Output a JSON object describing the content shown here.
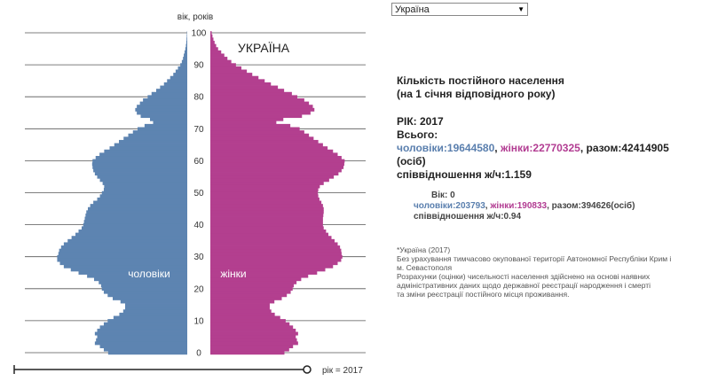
{
  "country_select": {
    "value": "Україна",
    "arrow": "▼"
  },
  "chart_data": {
    "type": "bar",
    "orientation": "population-pyramid",
    "title": "УКРАЇНА",
    "ylabel": "вік, років",
    "y_ticks": [
      "0",
      "10",
      "20",
      "30",
      "40",
      "50",
      "60",
      "70",
      "80",
      "90",
      "100"
    ],
    "xlim_max": 400000,
    "ages": [
      0,
      1,
      2,
      3,
      4,
      5,
      6,
      7,
      8,
      9,
      10,
      11,
      12,
      13,
      14,
      15,
      16,
      17,
      18,
      19,
      20,
      21,
      22,
      23,
      24,
      25,
      26,
      27,
      28,
      29,
      30,
      31,
      32,
      33,
      34,
      35,
      36,
      37,
      38,
      39,
      40,
      41,
      42,
      43,
      44,
      45,
      46,
      47,
      48,
      49,
      50,
      51,
      52,
      53,
      54,
      55,
      56,
      57,
      58,
      59,
      60,
      61,
      62,
      63,
      64,
      65,
      66,
      67,
      68,
      69,
      70,
      71,
      72,
      73,
      74,
      75,
      76,
      77,
      78,
      79,
      80,
      81,
      82,
      83,
      84,
      85,
      86,
      87,
      88,
      89,
      90,
      91,
      92,
      93,
      94,
      95,
      96,
      97,
      98,
      99,
      100
    ],
    "series": [
      {
        "name": "чоловіки",
        "color": "#5d84b1",
        "values": [
          203793,
          215000,
          225000,
          238000,
          235000,
          232000,
          238000,
          232000,
          225000,
          215000,
          205000,
          190000,
          175000,
          165000,
          160000,
          160000,
          172000,
          192000,
          205000,
          215000,
          220000,
          222000,
          228000,
          240000,
          258000,
          280000,
          300000,
          318000,
          328000,
          335000,
          335000,
          332000,
          330000,
          325000,
          318000,
          308000,
          298000,
          288000,
          280000,
          272000,
          268000,
          266000,
          264000,
          262000,
          260000,
          256000,
          250000,
          242000,
          232000,
          225000,
          220000,
          215000,
          214000,
          218000,
          225000,
          232000,
          238000,
          242000,
          244000,
          245000,
          244000,
          236000,
          226000,
          214000,
          200000,
          188000,
          176000,
          164000,
          152000,
          140000,
          128000,
          110000,
          88000,
          96000,
          120000,
          130000,
          134000,
          130000,
          122000,
          114000,
          102000,
          92000,
          80000,
          70000,
          60000,
          52000,
          44000,
          36000,
          30000,
          24000,
          18000,
          14000,
          11000,
          9000,
          7000,
          5000,
          3500,
          2500,
          1800,
          1200,
          800
        ]
      },
      {
        "name": "жінки",
        "color": "#b33f8f",
        "values": [
          190833,
          203000,
          213000,
          226000,
          223000,
          220000,
          226000,
          220000,
          213000,
          204000,
          194000,
          180000,
          166000,
          157000,
          153000,
          153000,
          165000,
          184000,
          197000,
          207000,
          212000,
          215000,
          222000,
          234000,
          252000,
          275000,
          296000,
          316000,
          328000,
          337000,
          340000,
          338000,
          337000,
          334000,
          328000,
          320000,
          312000,
          304000,
          298000,
          292000,
          290000,
          290000,
          290000,
          291000,
          292000,
          292000,
          290000,
          286000,
          281000,
          278000,
          277000,
          278000,
          282000,
          292000,
          306000,
          318000,
          330000,
          338000,
          343000,
          345000,
          346000,
          338000,
          328000,
          316000,
          302000,
          290000,
          278000,
          266000,
          254000,
          242000,
          230000,
          206000,
          170000,
          188000,
          236000,
          258000,
          268000,
          264000,
          254000,
          242000,
          224000,
          210000,
          190000,
          174000,
          156000,
          140000,
          124000,
          108000,
          94000,
          80000,
          66000,
          54000,
          44000,
          36000,
          28000,
          20000,
          15000,
          11000,
          8000,
          5500,
          3500
        ]
      }
    ],
    "side_labels": {
      "men": "чоловіки",
      "women": "жінки"
    },
    "year_slider": {
      "label": "рік = 2017",
      "value": 2017
    }
  },
  "info": {
    "title_line1": "Кількість постійного населення",
    "title_line2": "(на 1 січня відповідного року)",
    "year_text": "РІК: 2017",
    "total_label": "Всього:",
    "men_label": "чоловіки:",
    "men_value": "19644580",
    "women_label": "жінки:",
    "women_value": "22770325",
    "sum_text": "разом:42414905 (осіб)",
    "ratio_text": "співвідношення ж/ч:1.159",
    "age_text": "Вік: 0",
    "age_men_label": "чоловіки:",
    "age_men_value": "203793",
    "age_women_label": "жінки:",
    "age_women_value": "190833",
    "age_sum_text": "разом:394626(осіб)",
    "age_ratio_text": "співвідношення ж/ч:0.94",
    "note1": "*Україна (2017)",
    "note2": "Без урахування тимчасово окупованої території Автономної Республіки Крим і",
    "note3": "м. Севастополя",
    "note4": "Розрахунки (оцінки) чисельності населення здійснено на основі наявних",
    "note5": "адміністративних даних щодо державної реєстрації народження і смерті",
    "note6": "та зміни реєстрації постійного місця проживання."
  }
}
